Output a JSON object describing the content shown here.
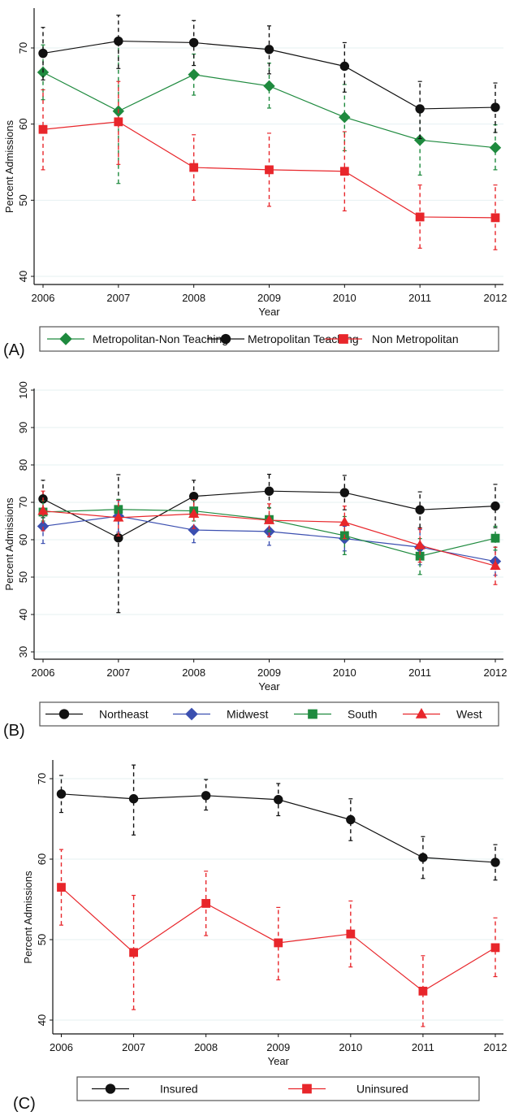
{
  "chart_data": [
    {
      "panel_label": "(A)",
      "type": "line",
      "xlabel": "Year",
      "ylabel": "Percent Admissions",
      "x": [
        2006,
        2007,
        2008,
        2009,
        2010,
        2011,
        2012
      ],
      "ylim": [
        40,
        73
      ],
      "yticks": [
        40,
        50,
        60,
        70
      ],
      "grid": true,
      "legend_position": "bottom",
      "series": [
        {
          "name": "Metropolitan-Non Teaching",
          "color": "#1e8a3e",
          "marker": "diamond",
          "values": [
            66.8,
            61.7,
            66.5,
            65.0,
            60.9,
            57.9,
            56.9
          ],
          "ci_low": [
            63.2,
            52.2,
            63.8,
            62.1,
            56.5,
            53.3,
            54.0
          ],
          "ci_high": [
            70.4,
            70.9,
            69.2,
            68.0,
            65.2,
            62.2,
            59.9
          ]
        },
        {
          "name": "Metropolitan Teaching",
          "color": "#111111",
          "marker": "circle",
          "values": [
            69.3,
            70.9,
            70.7,
            69.8,
            67.6,
            62.0,
            62.2
          ],
          "ci_low": [
            65.8,
            67.3,
            67.7,
            66.6,
            64.2,
            58.1,
            58.9
          ],
          "ci_high": [
            72.7,
            74.3,
            73.6,
            72.9,
            70.7,
            65.6,
            65.4
          ]
        },
        {
          "name": "Non Metropolitan",
          "color": "#e8262b",
          "marker": "square",
          "values": [
            59.3,
            60.3,
            54.3,
            54.0,
            53.8,
            47.8,
            47.7
          ],
          "ci_low": [
            54.0,
            54.7,
            50.0,
            49.2,
            48.6,
            43.7,
            43.5
          ],
          "ci_high": [
            64.5,
            65.6,
            58.6,
            58.8,
            59.0,
            52.0,
            52.0
          ]
        }
      ]
    },
    {
      "panel_label": "(B)",
      "type": "line",
      "xlabel": "Year",
      "ylabel": "Percent Admissions",
      "x": [
        2006,
        2007,
        2008,
        2009,
        2010,
        2011,
        2012
      ],
      "ylim": [
        28,
        102
      ],
      "yticks": [
        30,
        40,
        50,
        60,
        70,
        80,
        90,
        100
      ],
      "grid": true,
      "legend_position": "bottom",
      "series": [
        {
          "name": "Northeast",
          "color": "#111111",
          "marker": "circle",
          "values": [
            70.9,
            60.5,
            71.6,
            73.0,
            72.6,
            68.0,
            69.0
          ],
          "ci_low": [
            65.9,
            40.5,
            67.3,
            68.5,
            68.0,
            63.2,
            63.2
          ],
          "ci_high": [
            75.9,
            77.4,
            75.9,
            77.5,
            77.2,
            72.8,
            74.8
          ]
        },
        {
          "name": "Midwest",
          "color": "#3b4fb0",
          "marker": "diamond",
          "values": [
            63.6,
            66.3,
            62.6,
            62.2,
            60.3,
            58.0,
            54.2
          ],
          "ci_low": [
            59.0,
            62.0,
            59.2,
            58.5,
            57.0,
            53.3,
            50.5
          ],
          "ci_high": [
            68.2,
            70.6,
            66.0,
            66.0,
            63.6,
            62.7,
            58.0
          ]
        },
        {
          "name": "South",
          "color": "#1e8a3e",
          "marker": "square",
          "values": [
            67.4,
            68.1,
            67.7,
            65.4,
            61.1,
            55.6,
            60.4
          ],
          "ci_low": [
            65.0,
            65.0,
            65.0,
            62.2,
            56.0,
            50.7,
            57.2
          ],
          "ci_high": [
            70.4,
            70.8,
            70.5,
            68.6,
            66.2,
            60.3,
            63.6
          ]
        },
        {
          "name": "West",
          "color": "#e8262b",
          "marker": "triangle",
          "values": [
            67.7,
            65.9,
            66.9,
            65.2,
            64.7,
            58.5,
            53.0
          ],
          "ci_low": [
            62.4,
            61.0,
            63.0,
            60.8,
            60.3,
            54.0,
            48.0
          ],
          "ci_high": [
            73.0,
            70.5,
            70.7,
            69.6,
            69.0,
            63.0,
            58.0
          ]
        }
      ]
    },
    {
      "panel_label": "(C)",
      "type": "line",
      "xlabel": "Year",
      "ylabel": "Percent Admissions",
      "x": [
        2006,
        2007,
        2008,
        2009,
        2010,
        2011,
        2012
      ],
      "ylim": [
        38.3,
        73.4
      ],
      "yticks": [
        40,
        50,
        60,
        70
      ],
      "grid": true,
      "legend_position": "bottom",
      "series": [
        {
          "name": "Insured",
          "color": "#111111",
          "marker": "circle",
          "values": [
            68.1,
            67.5,
            67.9,
            67.4,
            64.9,
            60.2,
            59.6
          ],
          "ci_low": [
            65.8,
            63.0,
            66.1,
            65.4,
            62.3,
            57.6,
            57.4
          ],
          "ci_high": [
            70.4,
            71.7,
            69.9,
            69.4,
            67.5,
            62.8,
            61.8
          ]
        },
        {
          "name": "Uninsured",
          "color": "#e8262b",
          "marker": "square",
          "values": [
            56.5,
            48.4,
            54.5,
            49.6,
            50.7,
            43.6,
            49.0
          ],
          "ci_low": [
            51.8,
            41.3,
            50.5,
            45.0,
            46.6,
            39.2,
            45.4
          ],
          "ci_high": [
            61.2,
            55.5,
            58.5,
            54.0,
            54.8,
            48.0,
            52.7
          ]
        }
      ]
    }
  ]
}
